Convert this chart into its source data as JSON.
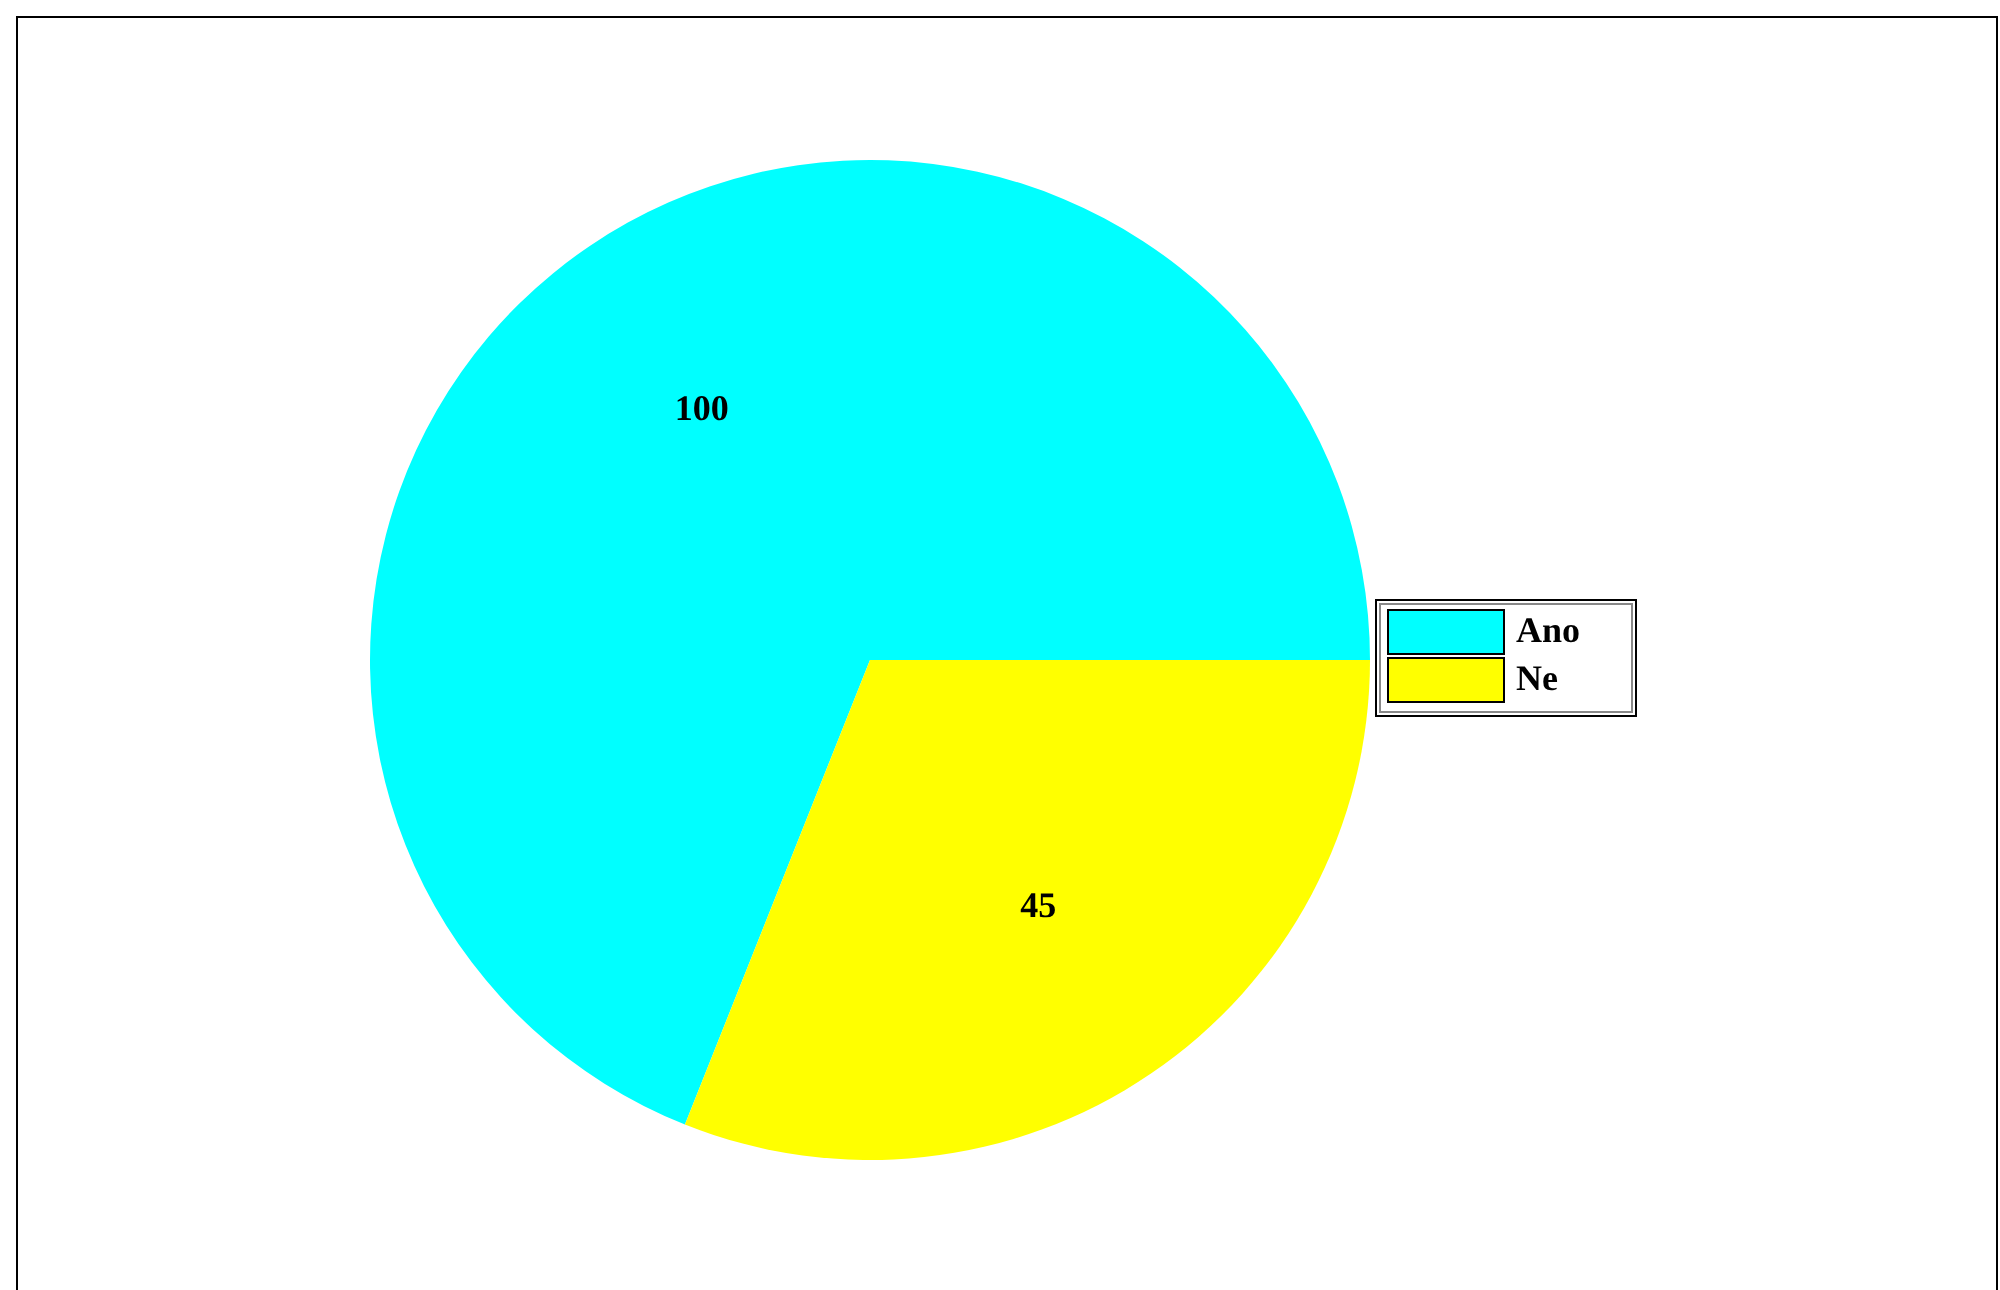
{
  "chart_data": {
    "type": "pie",
    "categories": [
      "Ano",
      "Ne"
    ],
    "values": [
      100,
      45
    ],
    "colors": [
      "#00ffff",
      "#ffff00"
    ],
    "data_labels": true,
    "legend": "right"
  }
}
